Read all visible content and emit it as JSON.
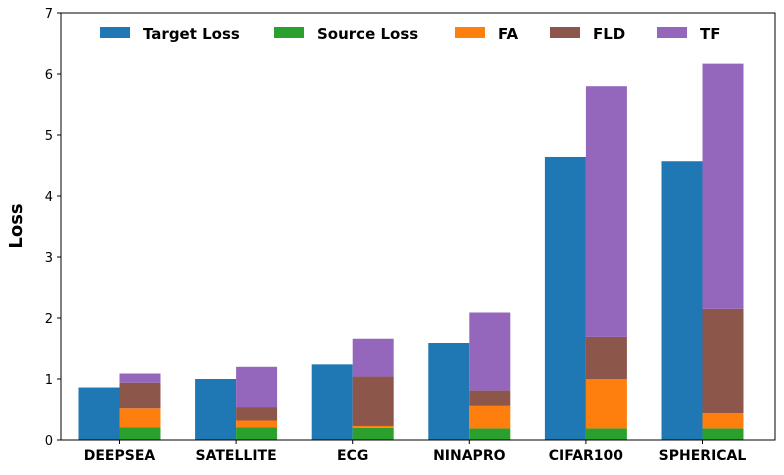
{
  "chart_data": {
    "type": "bar",
    "stacked_note_free": true,
    "categories": [
      "DEEPSEA",
      "SATELLITE",
      "ECG",
      "NINAPRO",
      "CIFAR100",
      "SPHERICAL"
    ],
    "series": [
      {
        "name": "Target Loss",
        "color": "#1f77b4",
        "group": "left",
        "values": [
          0.86,
          1.0,
          1.24,
          1.59,
          4.64,
          4.57
        ]
      },
      {
        "name": "Source Loss",
        "color": "#2ca02c",
        "group": "right",
        "values": [
          0.21,
          0.21,
          0.2,
          0.19,
          0.19,
          0.19
        ]
      },
      {
        "name": "FA",
        "color": "#ff7f0e",
        "group": "right",
        "values": [
          0.31,
          0.11,
          0.03,
          0.37,
          0.81,
          0.25
        ]
      },
      {
        "name": "FLD",
        "color": "#8c564b",
        "group": "right",
        "values": [
          0.42,
          0.22,
          0.81,
          0.25,
          0.69,
          1.71
        ]
      },
      {
        "name": "TF",
        "color": "#9467bd",
        "group": "right",
        "values": [
          0.15,
          0.66,
          0.62,
          1.28,
          4.11,
          4.02
        ]
      }
    ],
    "xlabel": "",
    "ylabel": "Loss",
    "ylim": [
      0,
      7
    ],
    "yticks": [
      "0",
      "1",
      "2",
      "3",
      "4",
      "5",
      "6",
      "7"
    ],
    "grid": false,
    "legend": "top"
  }
}
